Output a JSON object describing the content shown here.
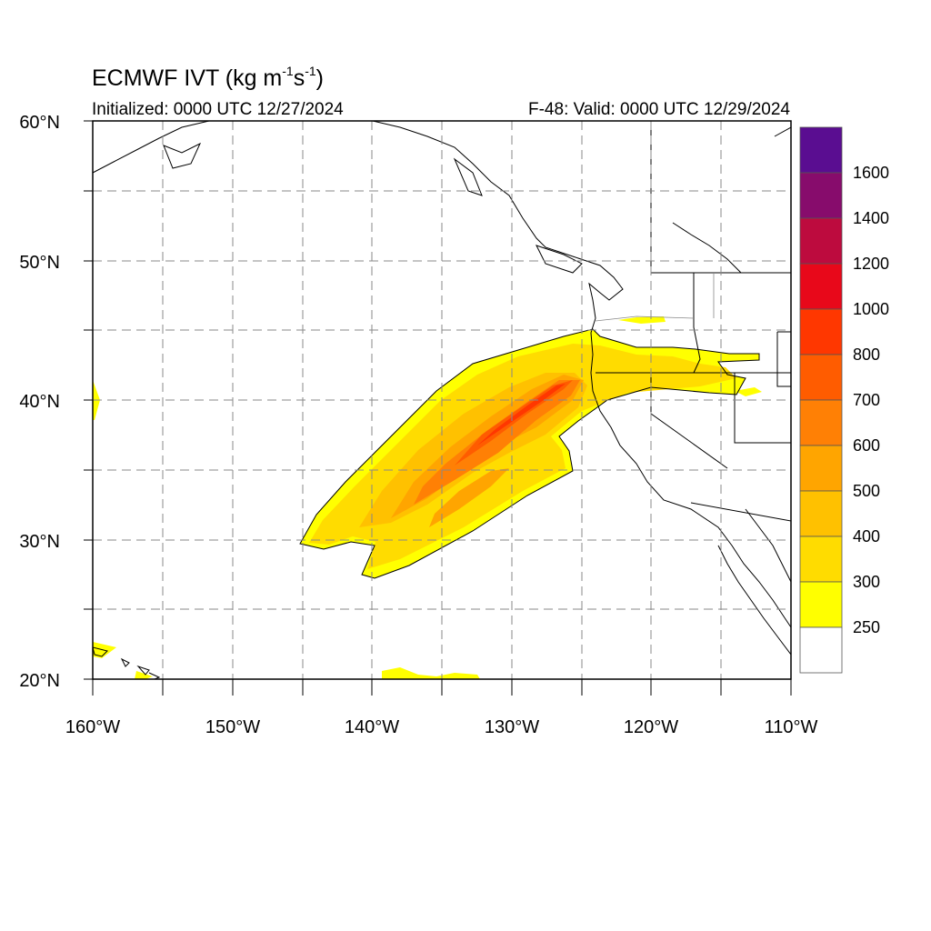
{
  "header": {
    "title_main": "ECMWF IVT (kg m",
    "title_exp1": "-1",
    "title_mid": "s",
    "title_exp2": "-1",
    "title_end": ")",
    "initialized": "Initialized: 0000 UTC 12/27/2024",
    "valid": "F-48: Valid: 0000 UTC 12/29/2024"
  },
  "map": {
    "lon_labels": [
      "160°W",
      "150°W",
      "140°W",
      "130°W",
      "120°W",
      "110°W"
    ],
    "lat_labels": [
      "60°N",
      "50°N",
      "40°N",
      "30°N",
      "20°N"
    ],
    "extent": {
      "lon_min": -160,
      "lon_max": -110,
      "lat_min": 20,
      "lat_max": 60
    }
  },
  "colorbar": {
    "labels": [
      "1600",
      "1400",
      "1200",
      "1000",
      "800",
      "700",
      "600",
      "500",
      "400",
      "300",
      "250"
    ],
    "colors": [
      "#5a0d91",
      "#870c6c",
      "#bd0b3e",
      "#e8081a",
      "#ff3700",
      "#ff5c00",
      "#ff8005",
      "#ffa500",
      "#ffc100",
      "#ffdc00",
      "#ffff00",
      "#ffffff"
    ]
  }
}
